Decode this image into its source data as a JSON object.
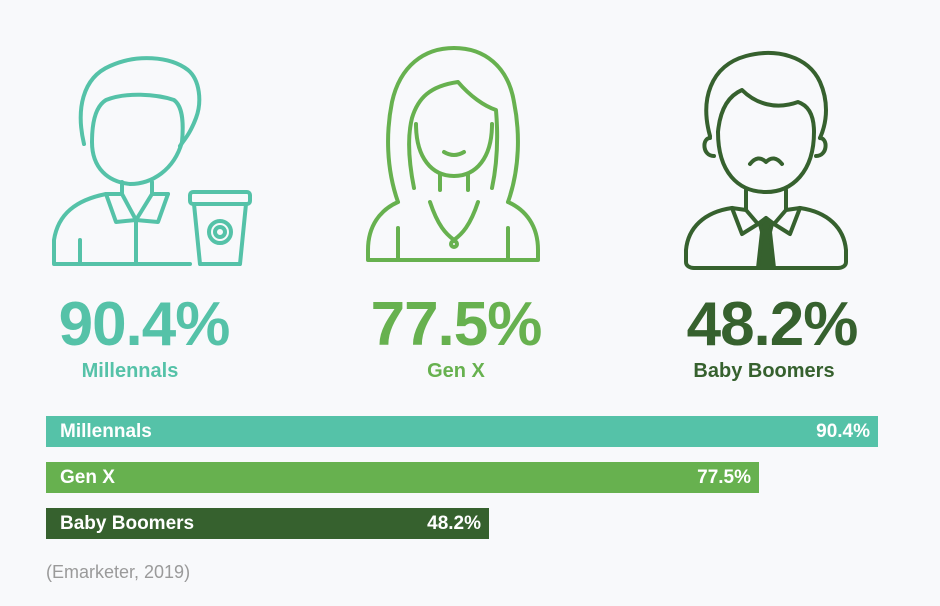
{
  "chart_data": {
    "type": "bar",
    "orientation": "horizontal",
    "categories": [
      "Millennals",
      "Gen X",
      "Baby Boomers"
    ],
    "values": [
      90.4,
      77.5,
      48.2
    ],
    "value_labels": [
      "90.4%",
      "77.5%",
      "48.2%"
    ],
    "xlim": [
      0,
      100
    ],
    "colors": [
      "#55c2a8",
      "#67b14f",
      "#36612e"
    ],
    "source": "(Emarketer, 2019)"
  },
  "stats": [
    {
      "value": "90.4%",
      "label": "Millennals",
      "icon": "millennial-person-coffee-icon",
      "color": "#55c2a8"
    },
    {
      "value": "77.5%",
      "label": "Gen X",
      "icon": "woman-icon",
      "color": "#67b14f"
    },
    {
      "value": "48.2%",
      "label": "Baby Boomers",
      "icon": "man-tie-icon",
      "color": "#36612e"
    }
  ]
}
